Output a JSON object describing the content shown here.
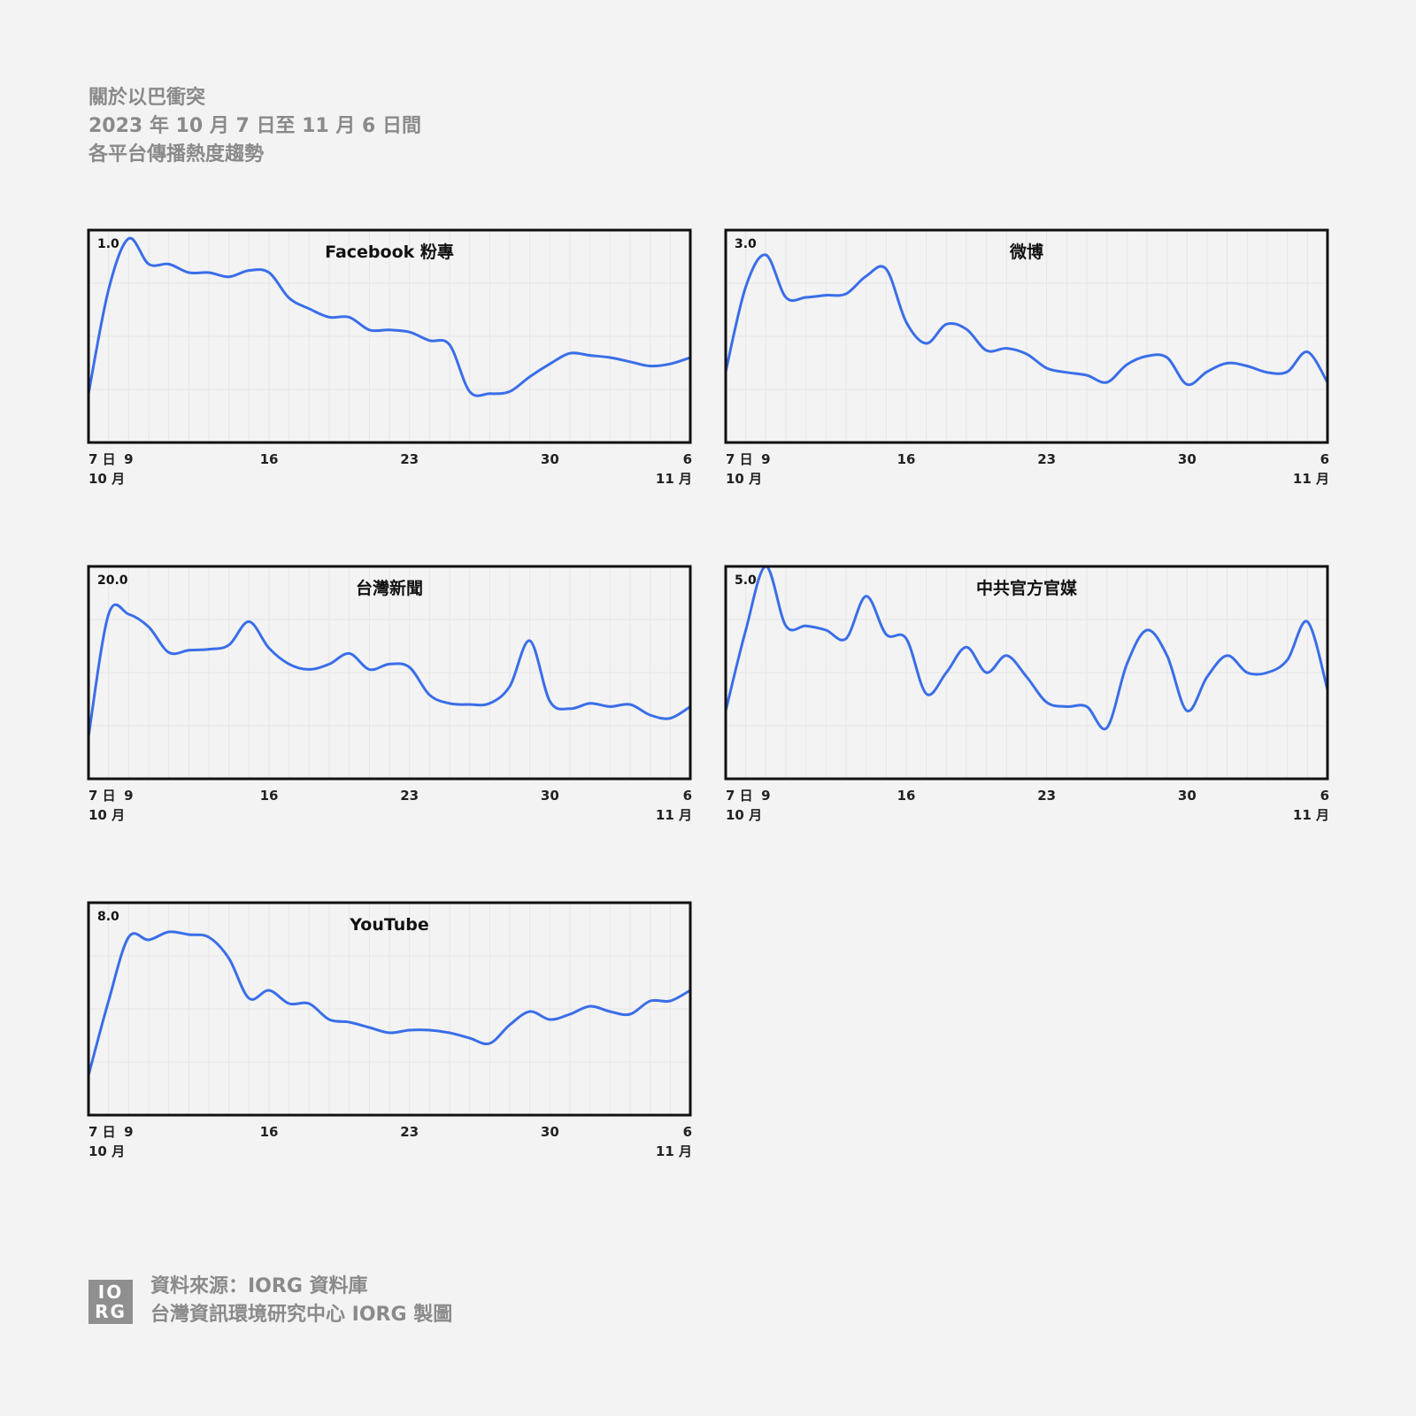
{
  "header": {
    "line1": "關於以巴衝突",
    "line2": "2023 年 10 月 7 日至 11 月 6 日間",
    "line3": "各平台傳播熱度趨勢"
  },
  "footer": {
    "logo_line1": "IO",
    "logo_line2": "RG",
    "source": "資料來源：IORG 資料庫",
    "credit": "台灣資訊環境研究中心 IORG 製圖"
  },
  "colors": {
    "line": "#3a6ee8",
    "frame": "#111111",
    "grid": "#e6e6e6",
    "background": "#f3f3f3"
  },
  "x_axis": {
    "days": 31,
    "ticks": [
      {
        "day": 0,
        "label": "7 日",
        "sub": "10 月"
      },
      {
        "day": 2,
        "label": "9",
        "sub": ""
      },
      {
        "day": 9,
        "label": "16",
        "sub": ""
      },
      {
        "day": 16,
        "label": "23",
        "sub": ""
      },
      {
        "day": 23,
        "label": "30",
        "sub": ""
      },
      {
        "day": 30,
        "label": "6",
        "sub": "11 月"
      }
    ]
  },
  "chart_data": [
    {
      "type": "line",
      "title": "Facebook 粉專",
      "ymax_label": "1.0",
      "ylim": [
        0,
        1.0
      ],
      "grid": true,
      "x": [
        "10-07",
        "10-08",
        "10-09",
        "10-10",
        "10-11",
        "10-12",
        "10-13",
        "10-14",
        "10-15",
        "10-16",
        "10-17",
        "10-18",
        "10-19",
        "10-20",
        "10-21",
        "10-22",
        "10-23",
        "10-24",
        "10-25",
        "10-26",
        "10-27",
        "10-28",
        "10-29",
        "10-30",
        "10-31",
        "11-01",
        "11-02",
        "11-03",
        "11-04",
        "11-05",
        "11-06"
      ],
      "values": [
        0.23,
        0.72,
        0.96,
        0.84,
        0.84,
        0.8,
        0.8,
        0.78,
        0.81,
        0.8,
        0.68,
        0.63,
        0.59,
        0.59,
        0.53,
        0.53,
        0.52,
        0.48,
        0.46,
        0.24,
        0.23,
        0.24,
        0.31,
        0.37,
        0.42,
        0.41,
        0.4,
        0.38,
        0.36,
        0.37,
        0.4
      ]
    },
    {
      "type": "line",
      "title": "微博",
      "ymax_label": "3.0",
      "ylim": [
        0,
        3.0
      ],
      "grid": true,
      "x": [
        "10-07",
        "10-08",
        "10-09",
        "10-10",
        "10-11",
        "10-12",
        "10-13",
        "10-14",
        "10-15",
        "10-16",
        "10-17",
        "10-18",
        "10-19",
        "10-20",
        "10-21",
        "10-22",
        "10-23",
        "10-24",
        "10-25",
        "10-26",
        "10-27",
        "10-28",
        "10-29",
        "10-30",
        "10-31",
        "11-01",
        "11-02",
        "11-03",
        "11-04",
        "11-05",
        "11-06"
      ],
      "values": [
        1.0,
        2.2,
        2.65,
        2.05,
        2.05,
        2.08,
        2.1,
        2.35,
        2.45,
        1.7,
        1.4,
        1.67,
        1.6,
        1.3,
        1.33,
        1.25,
        1.05,
        0.99,
        0.95,
        0.85,
        1.1,
        1.22,
        1.2,
        0.82,
        1.0,
        1.12,
        1.08,
        0.99,
        1.0,
        1.28,
        0.85
      ]
    },
    {
      "type": "line",
      "title": "台灣新聞",
      "ymax_label": "20.0",
      "ylim": [
        0,
        20.0
      ],
      "grid": true,
      "x": [
        "10-07",
        "10-08",
        "10-09",
        "10-10",
        "10-11",
        "10-12",
        "10-13",
        "10-14",
        "10-15",
        "10-16",
        "10-17",
        "10-18",
        "10-19",
        "10-20",
        "10-21",
        "10-22",
        "10-23",
        "10-24",
        "10-25",
        "10-26",
        "10-27",
        "10-28",
        "10-29",
        "10-30",
        "10-31",
        "11-01",
        "11-02",
        "11-03",
        "11-04",
        "11-05",
        "11-06"
      ],
      "values": [
        4.0,
        15.5,
        15.5,
        14.3,
        11.9,
        12.1,
        12.2,
        12.6,
        14.8,
        12.3,
        10.8,
        10.3,
        10.8,
        11.8,
        10.3,
        10.8,
        10.5,
        7.9,
        7.1,
        7.0,
        7.1,
        8.7,
        13.0,
        7.3,
        6.6,
        7.1,
        6.8,
        7.0,
        6.0,
        5.7,
        6.8
      ]
    },
    {
      "type": "line",
      "title": "中共官方官媒",
      "ymax_label": "5.0",
      "ylim": [
        0,
        5.0
      ],
      "grid": true,
      "x": [
        "10-07",
        "10-08",
        "10-09",
        "10-10",
        "10-11",
        "10-12",
        "10-13",
        "10-14",
        "10-15",
        "10-16",
        "10-17",
        "10-18",
        "10-19",
        "10-20",
        "10-21",
        "10-22",
        "10-23",
        "10-24",
        "10-25",
        "10-26",
        "10-27",
        "10-28",
        "10-29",
        "10-30",
        "10-31",
        "11-01",
        "11-02",
        "11-03",
        "11-04",
        "11-05",
        "11-06"
      ],
      "values": [
        1.6,
        3.5,
        5.0,
        3.6,
        3.6,
        3.5,
        3.3,
        4.3,
        3.4,
        3.3,
        2.0,
        2.5,
        3.1,
        2.5,
        2.9,
        2.4,
        1.8,
        1.7,
        1.7,
        1.2,
        2.7,
        3.5,
        2.9,
        1.6,
        2.4,
        2.9,
        2.5,
        2.5,
        2.8,
        3.7,
        2.1
      ]
    },
    {
      "type": "line",
      "title": "YouTube",
      "ymax_label": "8.0",
      "ylim": [
        0,
        8.0
      ],
      "grid": true,
      "x": [
        "10-07",
        "10-08",
        "10-09",
        "10-10",
        "10-11",
        "10-12",
        "10-13",
        "10-14",
        "10-15",
        "10-16",
        "10-17",
        "10-18",
        "10-19",
        "10-20",
        "10-21",
        "10-22",
        "10-23",
        "10-24",
        "10-25",
        "10-26",
        "10-27",
        "10-28",
        "10-29",
        "10-30",
        "10-31",
        "11-01",
        "11-02",
        "11-03",
        "11-04",
        "11-05",
        "11-06"
      ],
      "values": [
        1.5,
        4.3,
        6.7,
        6.6,
        6.9,
        6.8,
        6.7,
        5.9,
        4.4,
        4.7,
        4.2,
        4.2,
        3.6,
        3.5,
        3.3,
        3.1,
        3.2,
        3.2,
        3.1,
        2.9,
        2.7,
        3.4,
        3.9,
        3.6,
        3.8,
        4.1,
        3.9,
        3.8,
        4.3,
        4.3,
        4.7
      ]
    }
  ]
}
